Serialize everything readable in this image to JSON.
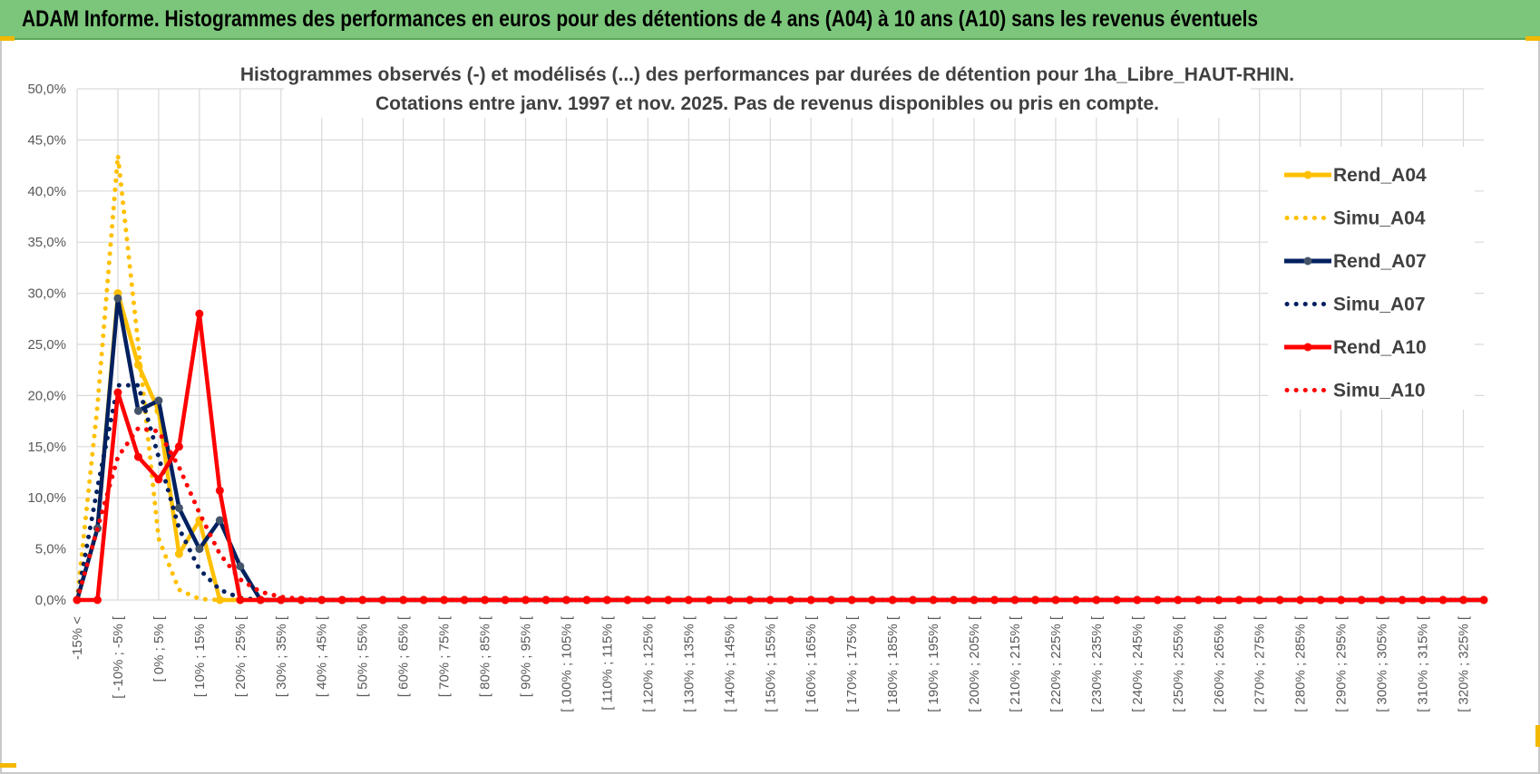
{
  "banner": {
    "title": "ADAM Informe. Histogrammes des performances en euros pour des détentions de 4 ans (A04) à 10 ans (A10) sans les revenus éventuels"
  },
  "colors": {
    "banner": "#7bc67a",
    "A04": "#ffc000",
    "A07": "#002060",
    "A10": "#ff0000",
    "grid": "#d9d9d9"
  },
  "chart_data": {
    "type": "line",
    "title": [
      "Histogrammes observés (-) et modélisés (...) des performances par durées de détention pour 1ha_Libre_HAUT-RHIN.",
      "Cotations entre janv. 1997 et nov. 2025. Pas de revenus disponibles ou pris en compte."
    ],
    "xlabel": "",
    "ylabel": "",
    "ylim": [
      0,
      50
    ],
    "y_ticks": [
      "0,0%",
      "5,0%",
      "10,0%",
      "15,0%",
      "20,0%",
      "25,0%",
      "30,0%",
      "35,0%",
      "40,0%",
      "45,0%",
      "50,0%"
    ],
    "grid": true,
    "legend_position": "right",
    "x_point_count": 70,
    "x_tick_labels": [
      "-15% <",
      "[ -10% ; -5% [",
      "[ 0% ; 5% [",
      "[ 10% ; 15% [",
      "[ 20% ; 25% [",
      "[ 30% ; 35% [",
      "[ 40% ; 45% [",
      "[ 50% ; 55% [",
      "[ 60% ; 65% [",
      "[ 70% ; 75% [",
      "[ 80% ; 85% [",
      "[ 90% ; 95% [",
      "[ 100% ; 105% [",
      "[ 110% ; 115% [",
      "[ 120% ; 125% [",
      "[ 130% ; 135% [",
      "[ 140% ; 145% [",
      "[ 150% ; 155% [",
      "[ 160% ; 165% [",
      "[ 170% ; 175% [",
      "[ 180% ; 185% [",
      "[ 190% ; 195% [",
      "[ 200% ; 205% [",
      "[ 210% ; 215% [",
      "[ 220% ; 225% [",
      "[ 230% ; 235% [",
      "[ 240% ; 245% [",
      "[ 250% ; 255% [",
      "[ 260% ; 265% [",
      "[ 270% ; 275% [",
      "[ 280% ; 285% [",
      "[ 290% ; 295% [",
      "[ 300% ; 305% [",
      "[ 310% ; 315% [",
      "[ 320% ; 325% ["
    ],
    "series": [
      {
        "name": "Rend_A04",
        "style": "solid",
        "color": "#ffc000",
        "values": [
          0,
          7,
          30,
          23,
          18.5,
          4.5,
          7.8,
          0,
          0,
          0,
          0,
          0,
          0,
          0,
          0,
          0,
          0,
          0,
          0,
          0,
          0,
          0,
          0,
          0,
          0,
          0,
          0,
          0,
          0,
          0,
          0,
          0,
          0,
          0,
          0,
          0,
          0,
          0,
          0,
          0,
          0,
          0,
          0,
          0,
          0,
          0,
          0,
          0,
          0,
          0,
          0,
          0,
          0,
          0,
          0,
          0,
          0,
          0,
          0,
          0,
          0,
          0,
          0,
          0,
          0,
          0,
          0,
          0,
          0,
          0
        ]
      },
      {
        "name": "Simu_A04",
        "style": "dotted",
        "color": "#ffc000",
        "values": [
          0,
          19,
          43.5,
          25,
          6,
          1,
          0.1,
          0,
          0,
          0,
          0,
          0,
          0,
          0,
          0,
          0,
          0,
          0,
          0,
          0,
          0,
          0,
          0,
          0,
          0,
          0,
          0,
          0,
          0,
          0,
          0,
          0,
          0,
          0,
          0,
          0,
          0,
          0,
          0,
          0,
          0,
          0,
          0,
          0,
          0,
          0,
          0,
          0,
          0,
          0,
          0,
          0,
          0,
          0,
          0,
          0,
          0,
          0,
          0,
          0,
          0,
          0,
          0,
          0,
          0,
          0,
          0,
          0,
          0,
          0
        ]
      },
      {
        "name": "Rend_A07",
        "style": "solid",
        "color": "#002060",
        "values": [
          0,
          7,
          29.5,
          18.5,
          19.5,
          9,
          5,
          7.8,
          3.3,
          0,
          0,
          0,
          0,
          0,
          0,
          0,
          0,
          0,
          0,
          0,
          0,
          0,
          0,
          0,
          0,
          0,
          0,
          0,
          0,
          0,
          0,
          0,
          0,
          0,
          0,
          0,
          0,
          0,
          0,
          0,
          0,
          0,
          0,
          0,
          0,
          0,
          0,
          0,
          0,
          0,
          0,
          0,
          0,
          0,
          0,
          0,
          0,
          0,
          0,
          0,
          0,
          0,
          0,
          0,
          0,
          0,
          0,
          0,
          0,
          0
        ]
      },
      {
        "name": "Simu_A07",
        "style": "dotted",
        "color": "#002060",
        "values": [
          0,
          11,
          21,
          21,
          14,
          7,
          3,
          1,
          0.2,
          0,
          0,
          0,
          0,
          0,
          0,
          0,
          0,
          0,
          0,
          0,
          0,
          0,
          0,
          0,
          0,
          0,
          0,
          0,
          0,
          0,
          0,
          0,
          0,
          0,
          0,
          0,
          0,
          0,
          0,
          0,
          0,
          0,
          0,
          0,
          0,
          0,
          0,
          0,
          0,
          0,
          0,
          0,
          0,
          0,
          0,
          0,
          0,
          0,
          0,
          0,
          0,
          0,
          0,
          0,
          0,
          0,
          0,
          0,
          0,
          0
        ]
      },
      {
        "name": "Rend_A10",
        "style": "solid",
        "color": "#ff0000",
        "values": [
          0,
          0,
          20.3,
          14,
          11.8,
          15,
          28,
          10.7,
          0,
          0,
          0,
          0,
          0,
          0,
          0,
          0,
          0,
          0,
          0,
          0,
          0,
          0,
          0,
          0,
          0,
          0,
          0,
          0,
          0,
          0,
          0,
          0,
          0,
          0,
          0,
          0,
          0,
          0,
          0,
          0,
          0,
          0,
          0,
          0,
          0,
          0,
          0,
          0,
          0,
          0,
          0,
          0,
          0,
          0,
          0,
          0,
          0,
          0,
          0,
          0,
          0,
          0,
          0,
          0,
          0,
          0,
          0,
          0,
          0,
          0
        ]
      },
      {
        "name": "Simu_A10",
        "style": "dotted",
        "color": "#ff0000",
        "values": [
          0,
          7,
          14,
          16.8,
          16.5,
          13,
          8.5,
          4.5,
          2,
          0.8,
          0.3,
          0.1,
          0,
          0,
          0,
          0,
          0,
          0,
          0,
          0,
          0,
          0,
          0,
          0,
          0,
          0,
          0,
          0,
          0,
          0,
          0,
          0,
          0,
          0,
          0,
          0,
          0,
          0,
          0,
          0,
          0,
          0,
          0,
          0,
          0,
          0,
          0,
          0,
          0,
          0,
          0,
          0,
          0,
          0,
          0,
          0,
          0,
          0,
          0,
          0,
          0,
          0,
          0,
          0,
          0,
          0,
          0,
          0,
          0,
          0
        ]
      }
    ]
  }
}
